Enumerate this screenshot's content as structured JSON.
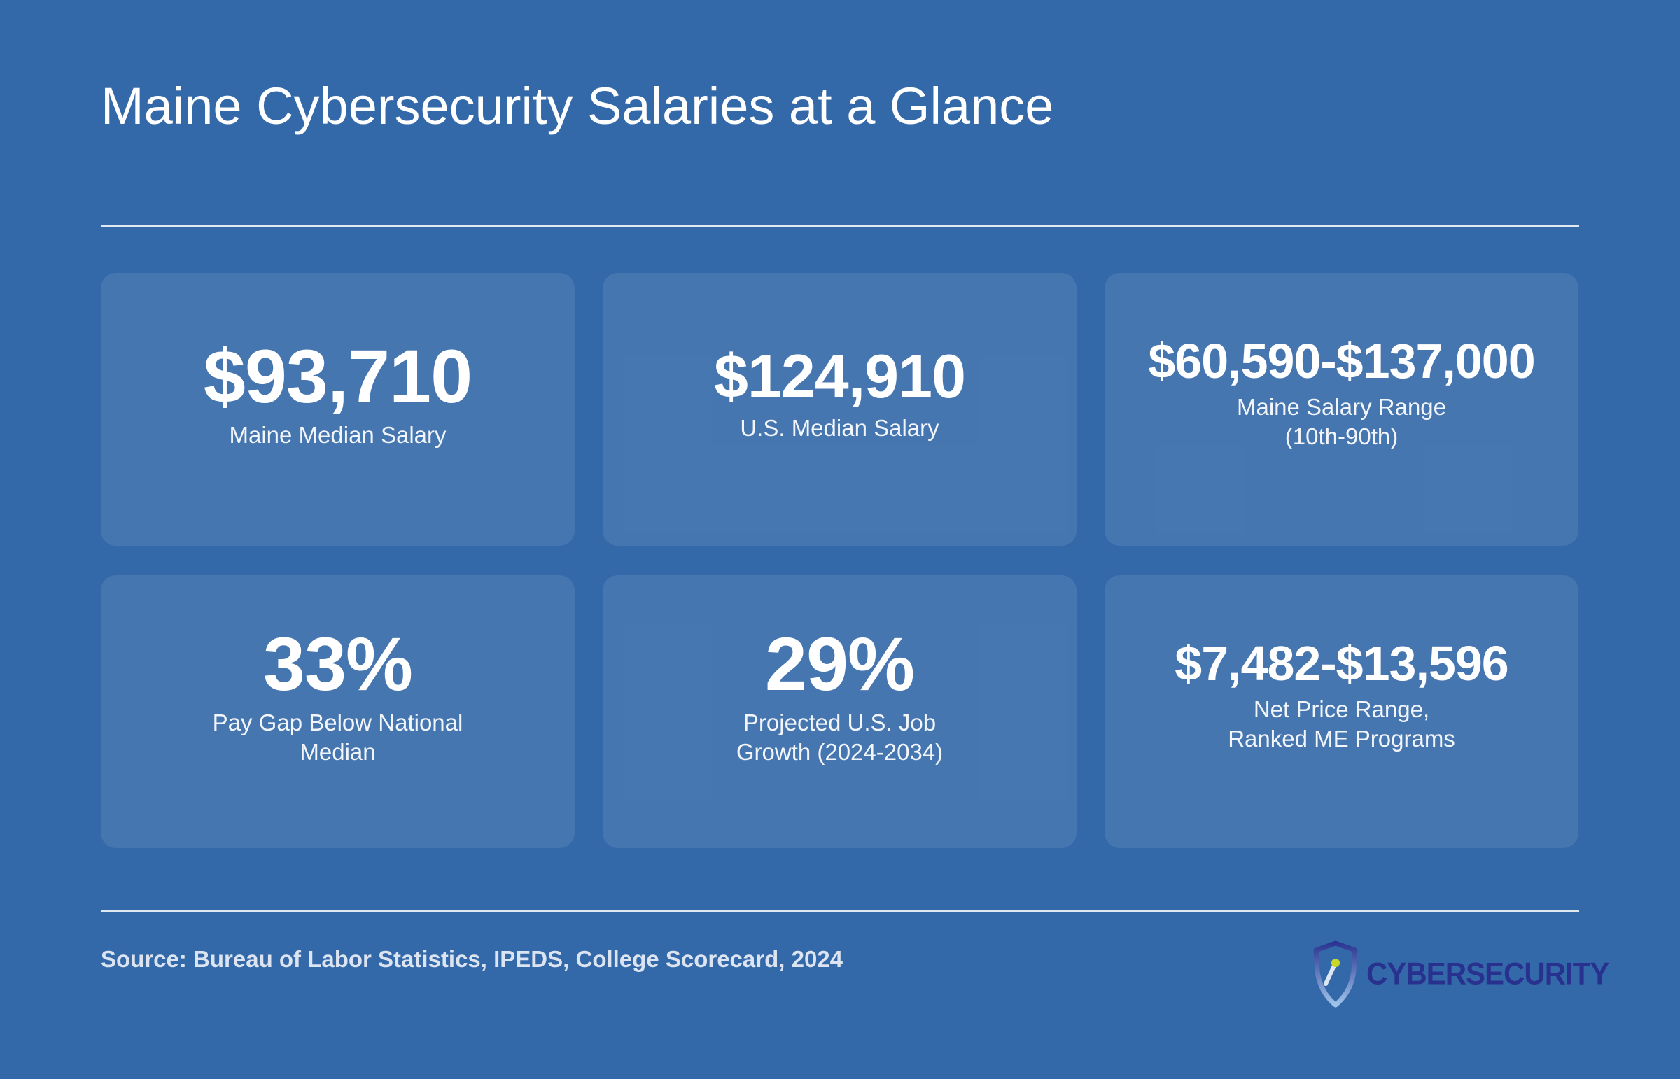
{
  "header": {
    "title": "Maine Cybersecurity Salaries at a Glance"
  },
  "stats": [
    {
      "value": "$93,710",
      "label": "Maine Median Salary"
    },
    {
      "value": "$124,910",
      "label": "U.S. Median Salary"
    },
    {
      "value": "$60,590-$137,000",
      "label": "Maine Salary Range\n(10th-90th)"
    },
    {
      "value": "33%",
      "label": "Pay Gap Below National\nMedian"
    },
    {
      "value": "29%",
      "label": "Projected U.S. Job\nGrowth (2024-2034)"
    },
    {
      "value": "$7,482-$13,596",
      "label": "Net Price Range,\nRanked ME Programs"
    }
  ],
  "footer": {
    "source": "Source: Bureau of Labor Statistics, IPEDS, College Scorecard, 2024",
    "logo_text": "CYBERSECURITY",
    "logo_icon": "shield-icon"
  },
  "colors": {
    "background": "#3469a9",
    "card": "#4577b2",
    "text": "#ffffff",
    "source_text": "#dbe4f0",
    "logo_text": "#29318f",
    "logo_accent": "#c8d62a"
  }
}
